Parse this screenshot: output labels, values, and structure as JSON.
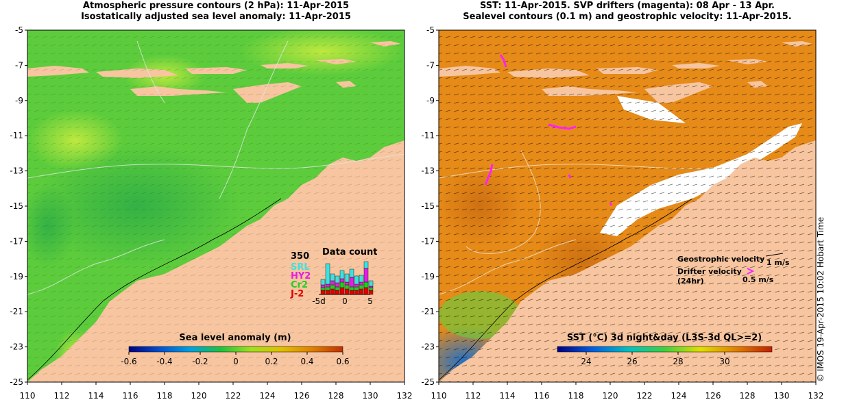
{
  "left_panel": {
    "title_line1": "Atmospheric pressure contours (2 hPa): 11-Apr-2015",
    "title_line2": "Isostatically adjusted sea level anomaly: 11-Apr-2015",
    "colorbar_label": "Sea level anomaly (m)",
    "colorbar_ticks": [
      "-0.6",
      "-0.4",
      "-0.2",
      "0",
      "0.2",
      "0.4",
      "0.6"
    ],
    "colorbar_colors": [
      "#000080",
      "#0050d0",
      "#00a0e0",
      "#20c040",
      "#a0e020",
      "#e0c000",
      "#e08000",
      "#c03000"
    ],
    "inset": {
      "title": "Data count",
      "y_max_label": "350",
      "x_ticks": [
        "-5d",
        "0",
        "5"
      ],
      "legend": [
        {
          "name": "SRL",
          "color": "#40e0e0"
        },
        {
          "name": "HY2",
          "color": "#e020e0"
        },
        {
          "name": "Cr2",
          "color": "#20d020"
        },
        {
          "name": "J-2",
          "color": "#e00000"
        }
      ]
    }
  },
  "right_panel": {
    "title_line1": "SST: 11-Apr-2015. SVP drifters (magenta): 08 Apr - 13 Apr.",
    "title_line2": "Sealevel contours (0.1 m) and geostrophic velocity: 11-Apr-2015.",
    "colorbar_label": "SST (°C) 3d night&day (L3S-3d QL>=2)",
    "colorbar_ticks": [
      "24",
      "26",
      "28",
      "30"
    ],
    "colorbar_colors": [
      "#000080",
      "#0060e0",
      "#00c0c0",
      "#40d040",
      "#e0e000",
      "#e08000",
      "#c02000"
    ],
    "legend_geostrophic": "Geostrophic velocity",
    "legend_geostrophic_scale": "1 m/s",
    "legend_drifter_line1": "Drifter velocity",
    "legend_drifter_line2": "(24hr)",
    "legend_drifter_scale": "0.5 m/s"
  },
  "axes": {
    "lon_ticks": [
      "110",
      "112",
      "114",
      "116",
      "118",
      "120",
      "122",
      "124",
      "126",
      "128",
      "130",
      "132"
    ],
    "lat_ticks": [
      "-5",
      "-7",
      "-9",
      "-11",
      "-13",
      "-15",
      "-17",
      "-19",
      "-21",
      "-23",
      "-25"
    ],
    "lon_range": [
      110,
      132
    ],
    "lat_range": [
      -25,
      -5
    ]
  },
  "colors": {
    "land": "#f7c59f",
    "ocean_left": "#5ccc3c",
    "ocean_right": "#e68a18",
    "drifters": "#ff20ff"
  },
  "credit": "© IMOS 19-Apr-2015 10:02 Hobart Time"
}
